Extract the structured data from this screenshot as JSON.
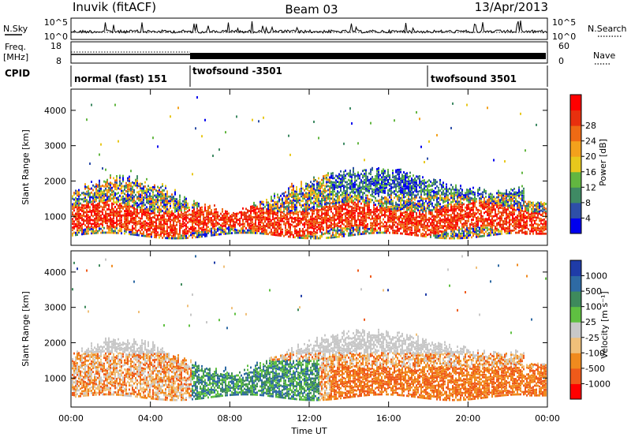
{
  "header": {
    "station": "Inuvik (fitACF)",
    "beam": "Beam 03",
    "date": "13/Apr/2013"
  },
  "side_labels": {
    "nsky": "N.Sky",
    "nsearch": "N.Search",
    "freq_top": "Freq.",
    "freq_unit": "[MHz]",
    "nave": "Nave",
    "cpid": "CPID"
  },
  "noise_axis": {
    "left_ticks": [
      "10^5",
      "10^0"
    ],
    "right_ticks": [
      "10^5",
      "10^0"
    ]
  },
  "freq_axis": {
    "left_ticks": [
      "18",
      "8"
    ],
    "right_ticks": [
      "60",
      "0"
    ]
  },
  "cpid_segments": [
    {
      "label": "normal (fast) 151",
      "start_h": 0
    },
    {
      "label": "twofsound -3501",
      "start_h": 6
    },
    {
      "label": "twofsound 3501",
      "start_h": 18
    }
  ],
  "chart_data": [
    {
      "type": "heatmap",
      "name": "power",
      "xlabel": "",
      "ylabel": "Slant Range [km]",
      "x_range_hours": [
        0,
        24
      ],
      "ylim": [
        180,
        4600
      ],
      "y_ticks": [
        1000,
        2000,
        3000,
        4000
      ],
      "colorbar": {
        "label": "Power [dB]",
        "ticks": [
          "4",
          "8",
          "12",
          "16",
          "20",
          "24",
          "28"
        ],
        "colors": [
          "#0000ee",
          "#2e4fa8",
          "#3f8a64",
          "#62b640",
          "#e8c81c",
          "#f3a11c",
          "#ef6a14",
          "#e8300e",
          "#ff0000"
        ]
      }
    },
    {
      "type": "heatmap",
      "name": "velocity",
      "xlabel": "Time UT",
      "ylabel": "Slant Range [km]",
      "x_range_hours": [
        0,
        24
      ],
      "ylim": [
        180,
        4600
      ],
      "y_ticks": [
        1000,
        2000,
        3000,
        4000
      ],
      "x_ticks": [
        "00:00",
        "04:00",
        "08:00",
        "12:00",
        "16:00",
        "20:00",
        "00:00"
      ],
      "colorbar": {
        "label": "Velocity [m s⁻¹]",
        "ticks": [
          "1000",
          "500",
          "100",
          "25",
          "-25",
          "-100",
          "-500",
          "-1000"
        ],
        "colors": [
          "#1f3ca8",
          "#2e6aa4",
          "#3e8a5c",
          "#5fc041",
          "#c8c8c8",
          "#f0c07a",
          "#f08a1e",
          "#ef5a1a",
          "#ff0000"
        ]
      }
    }
  ]
}
